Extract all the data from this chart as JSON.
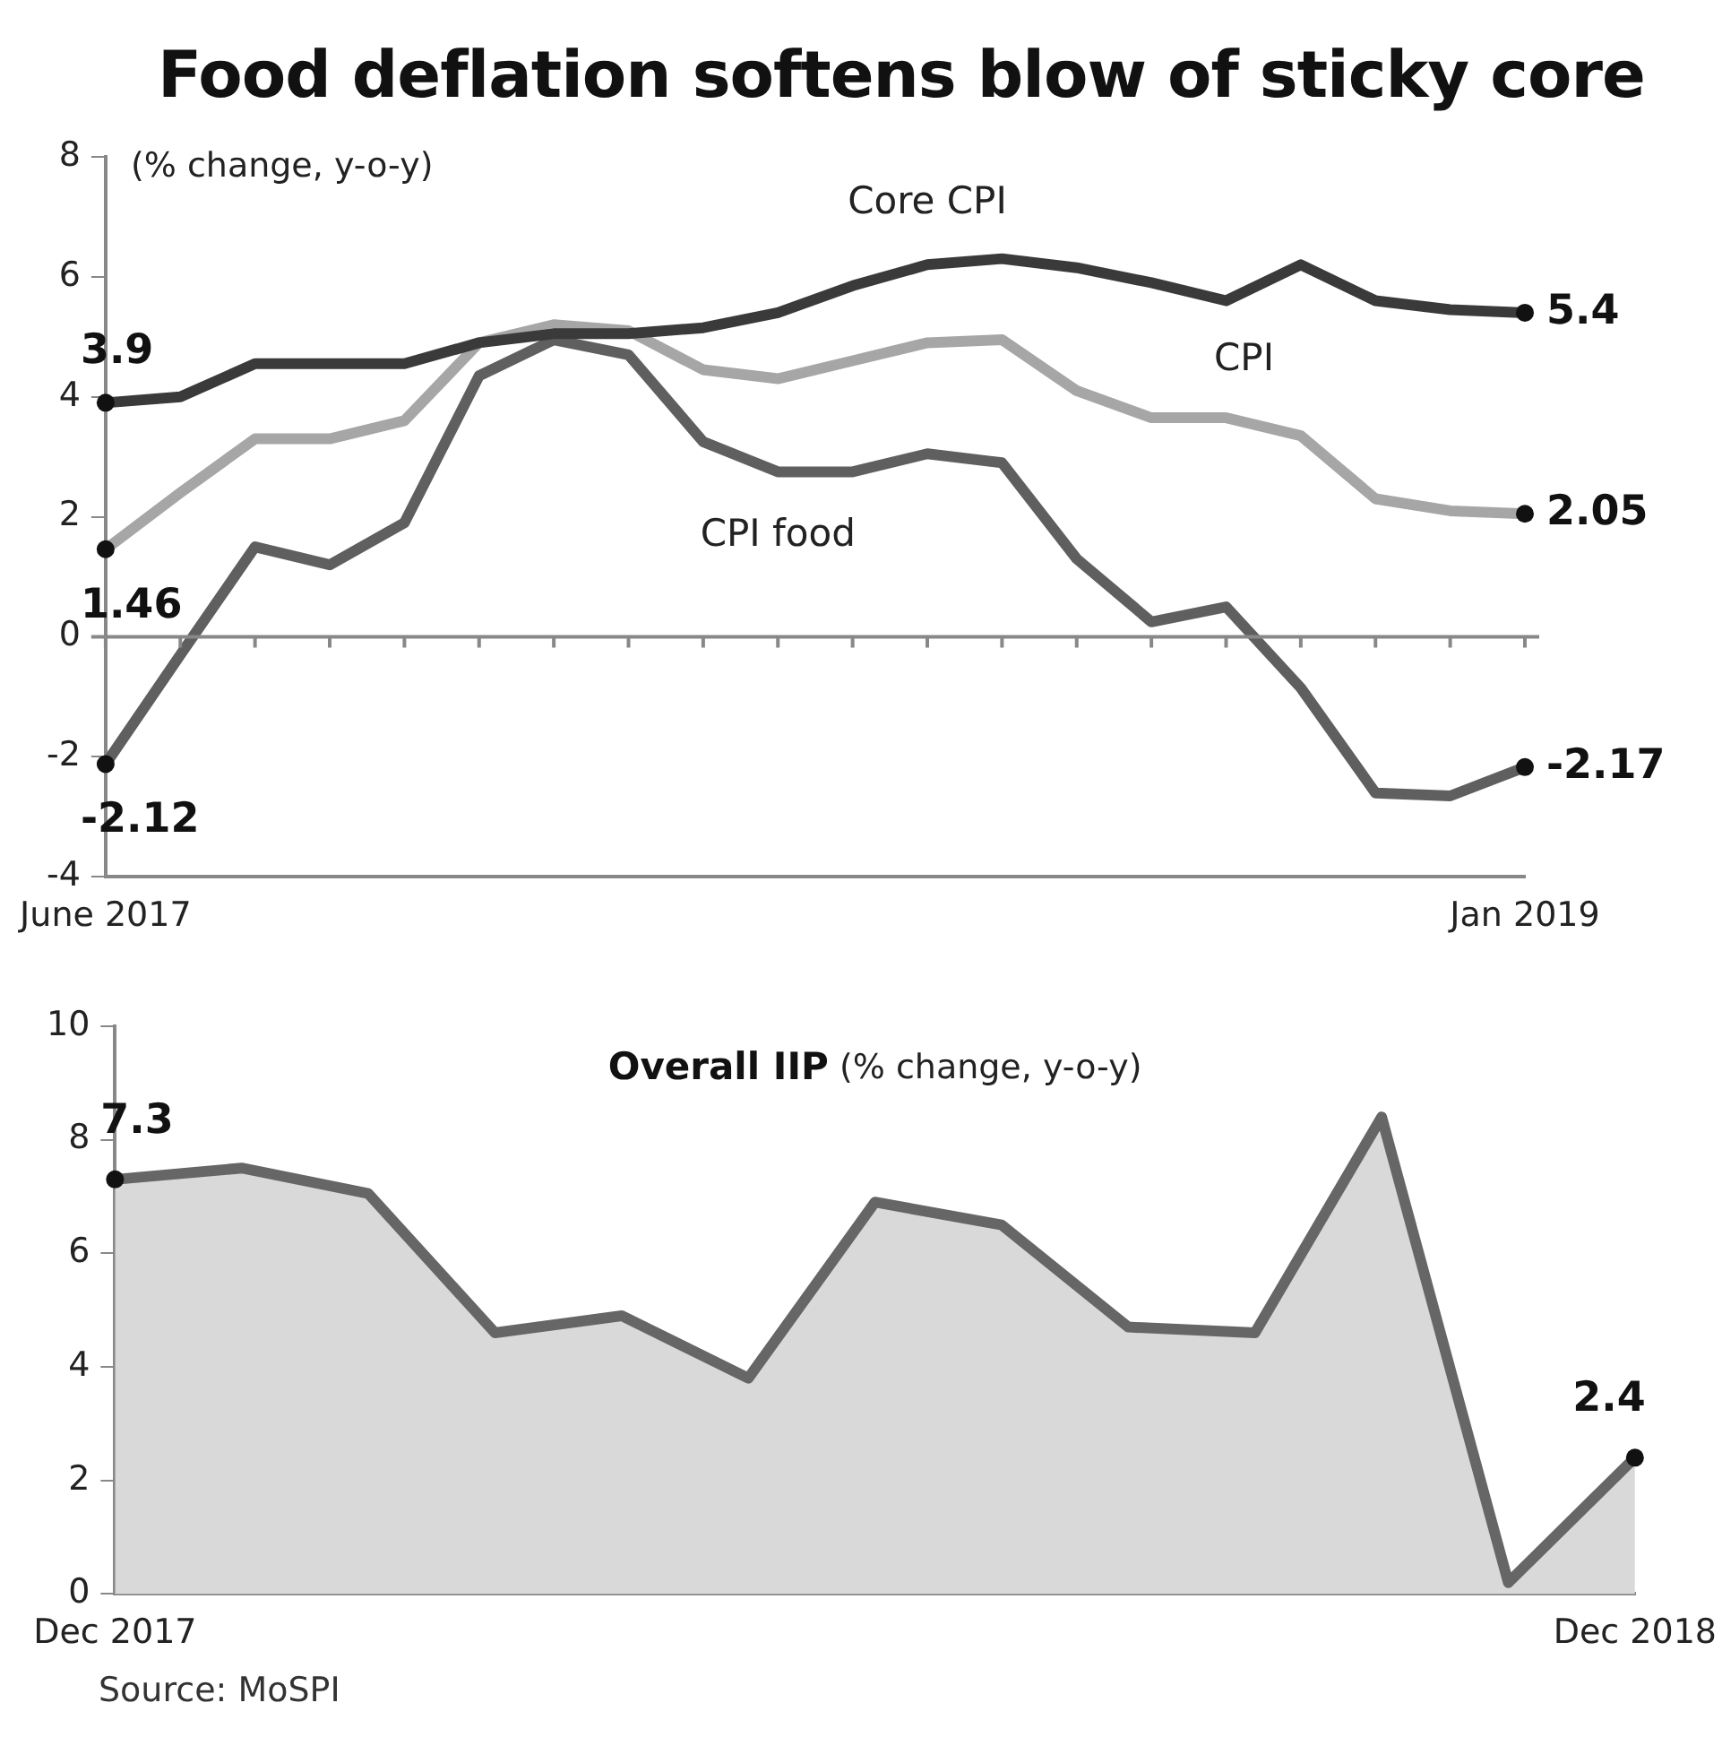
{
  "chart_data": [
    {
      "type": "line",
      "title": "Food deflation softens blow of sticky core",
      "ylabel": "(% change, y-o-y)",
      "categories": [
        "June 2017",
        null,
        null,
        null,
        null,
        null,
        null,
        null,
        null,
        null,
        null,
        null,
        null,
        null,
        null,
        null,
        null,
        null,
        null,
        "Jan 2019"
      ],
      "series": [
        {
          "name": "Core CPI",
          "color": "#3a3a3a",
          "values": [
            3.9,
            4.0,
            4.55,
            4.55,
            4.55,
            4.9,
            5.05,
            5.05,
            5.15,
            5.4,
            5.85,
            6.2,
            6.3,
            6.15,
            5.9,
            5.6,
            6.2,
            5.6,
            5.45,
            5.4
          ],
          "value_labels": [
            "3.9",
            null,
            null,
            null,
            null,
            null,
            null,
            null,
            null,
            null,
            null,
            null,
            null,
            null,
            null,
            null,
            null,
            null,
            null,
            "5.4"
          ]
        },
        {
          "name": "CPI",
          "color": "#a6a6a6",
          "values": [
            1.46,
            2.4,
            3.3,
            3.3,
            3.6,
            4.9,
            5.2,
            5.1,
            4.45,
            4.3,
            4.6,
            4.9,
            4.95,
            4.1,
            3.65,
            3.65,
            3.35,
            2.3,
            2.1,
            2.05
          ],
          "value_labels": [
            "1.46",
            null,
            null,
            null,
            null,
            null,
            null,
            null,
            null,
            null,
            null,
            null,
            null,
            null,
            null,
            null,
            null,
            null,
            null,
            "2.05"
          ]
        },
        {
          "name": "CPI food",
          "color": "#5f5f5f",
          "values": [
            -2.12,
            -0.3,
            1.5,
            1.2,
            1.9,
            4.35,
            4.95,
            4.7,
            3.25,
            2.75,
            2.75,
            3.05,
            2.9,
            1.3,
            0.25,
            0.5,
            -0.85,
            -2.6,
            -2.65,
            -2.17
          ],
          "value_labels": [
            "-2.12",
            null,
            null,
            null,
            null,
            null,
            null,
            null,
            null,
            null,
            null,
            null,
            null,
            null,
            null,
            null,
            null,
            null,
            null,
            "-2.17"
          ]
        }
      ],
      "ylim": [
        -4,
        8
      ],
      "yticks": [
        -4,
        -2,
        0,
        2,
        4,
        6,
        8
      ],
      "grid": false,
      "legend": false,
      "ref_lines": [
        {
          "axis": "y",
          "value": 0,
          "color": "#888888"
        }
      ]
    },
    {
      "type": "area",
      "title": "Overall IIP",
      "subtitle": "(% change, y-o-y)",
      "categories": [
        "Dec 2017",
        null,
        null,
        null,
        null,
        null,
        null,
        null,
        null,
        null,
        null,
        null,
        "Dec 2018"
      ],
      "series": [
        {
          "color": "#666666",
          "values": [
            7.3,
            7.5,
            7.05,
            4.6,
            4.9,
            3.8,
            6.9,
            6.5,
            4.7,
            4.6,
            8.4,
            0.2,
            2.4
          ],
          "value_labels": [
            "7.3",
            null,
            null,
            null,
            null,
            null,
            null,
            null,
            null,
            null,
            null,
            null,
            "2.4"
          ]
        }
      ],
      "ylim": [
        0,
        10
      ],
      "yticks": [
        0,
        2,
        4,
        6,
        8,
        10
      ],
      "grid": false,
      "legend": false,
      "annotations": [
        "Source: MoSPI"
      ]
    }
  ]
}
